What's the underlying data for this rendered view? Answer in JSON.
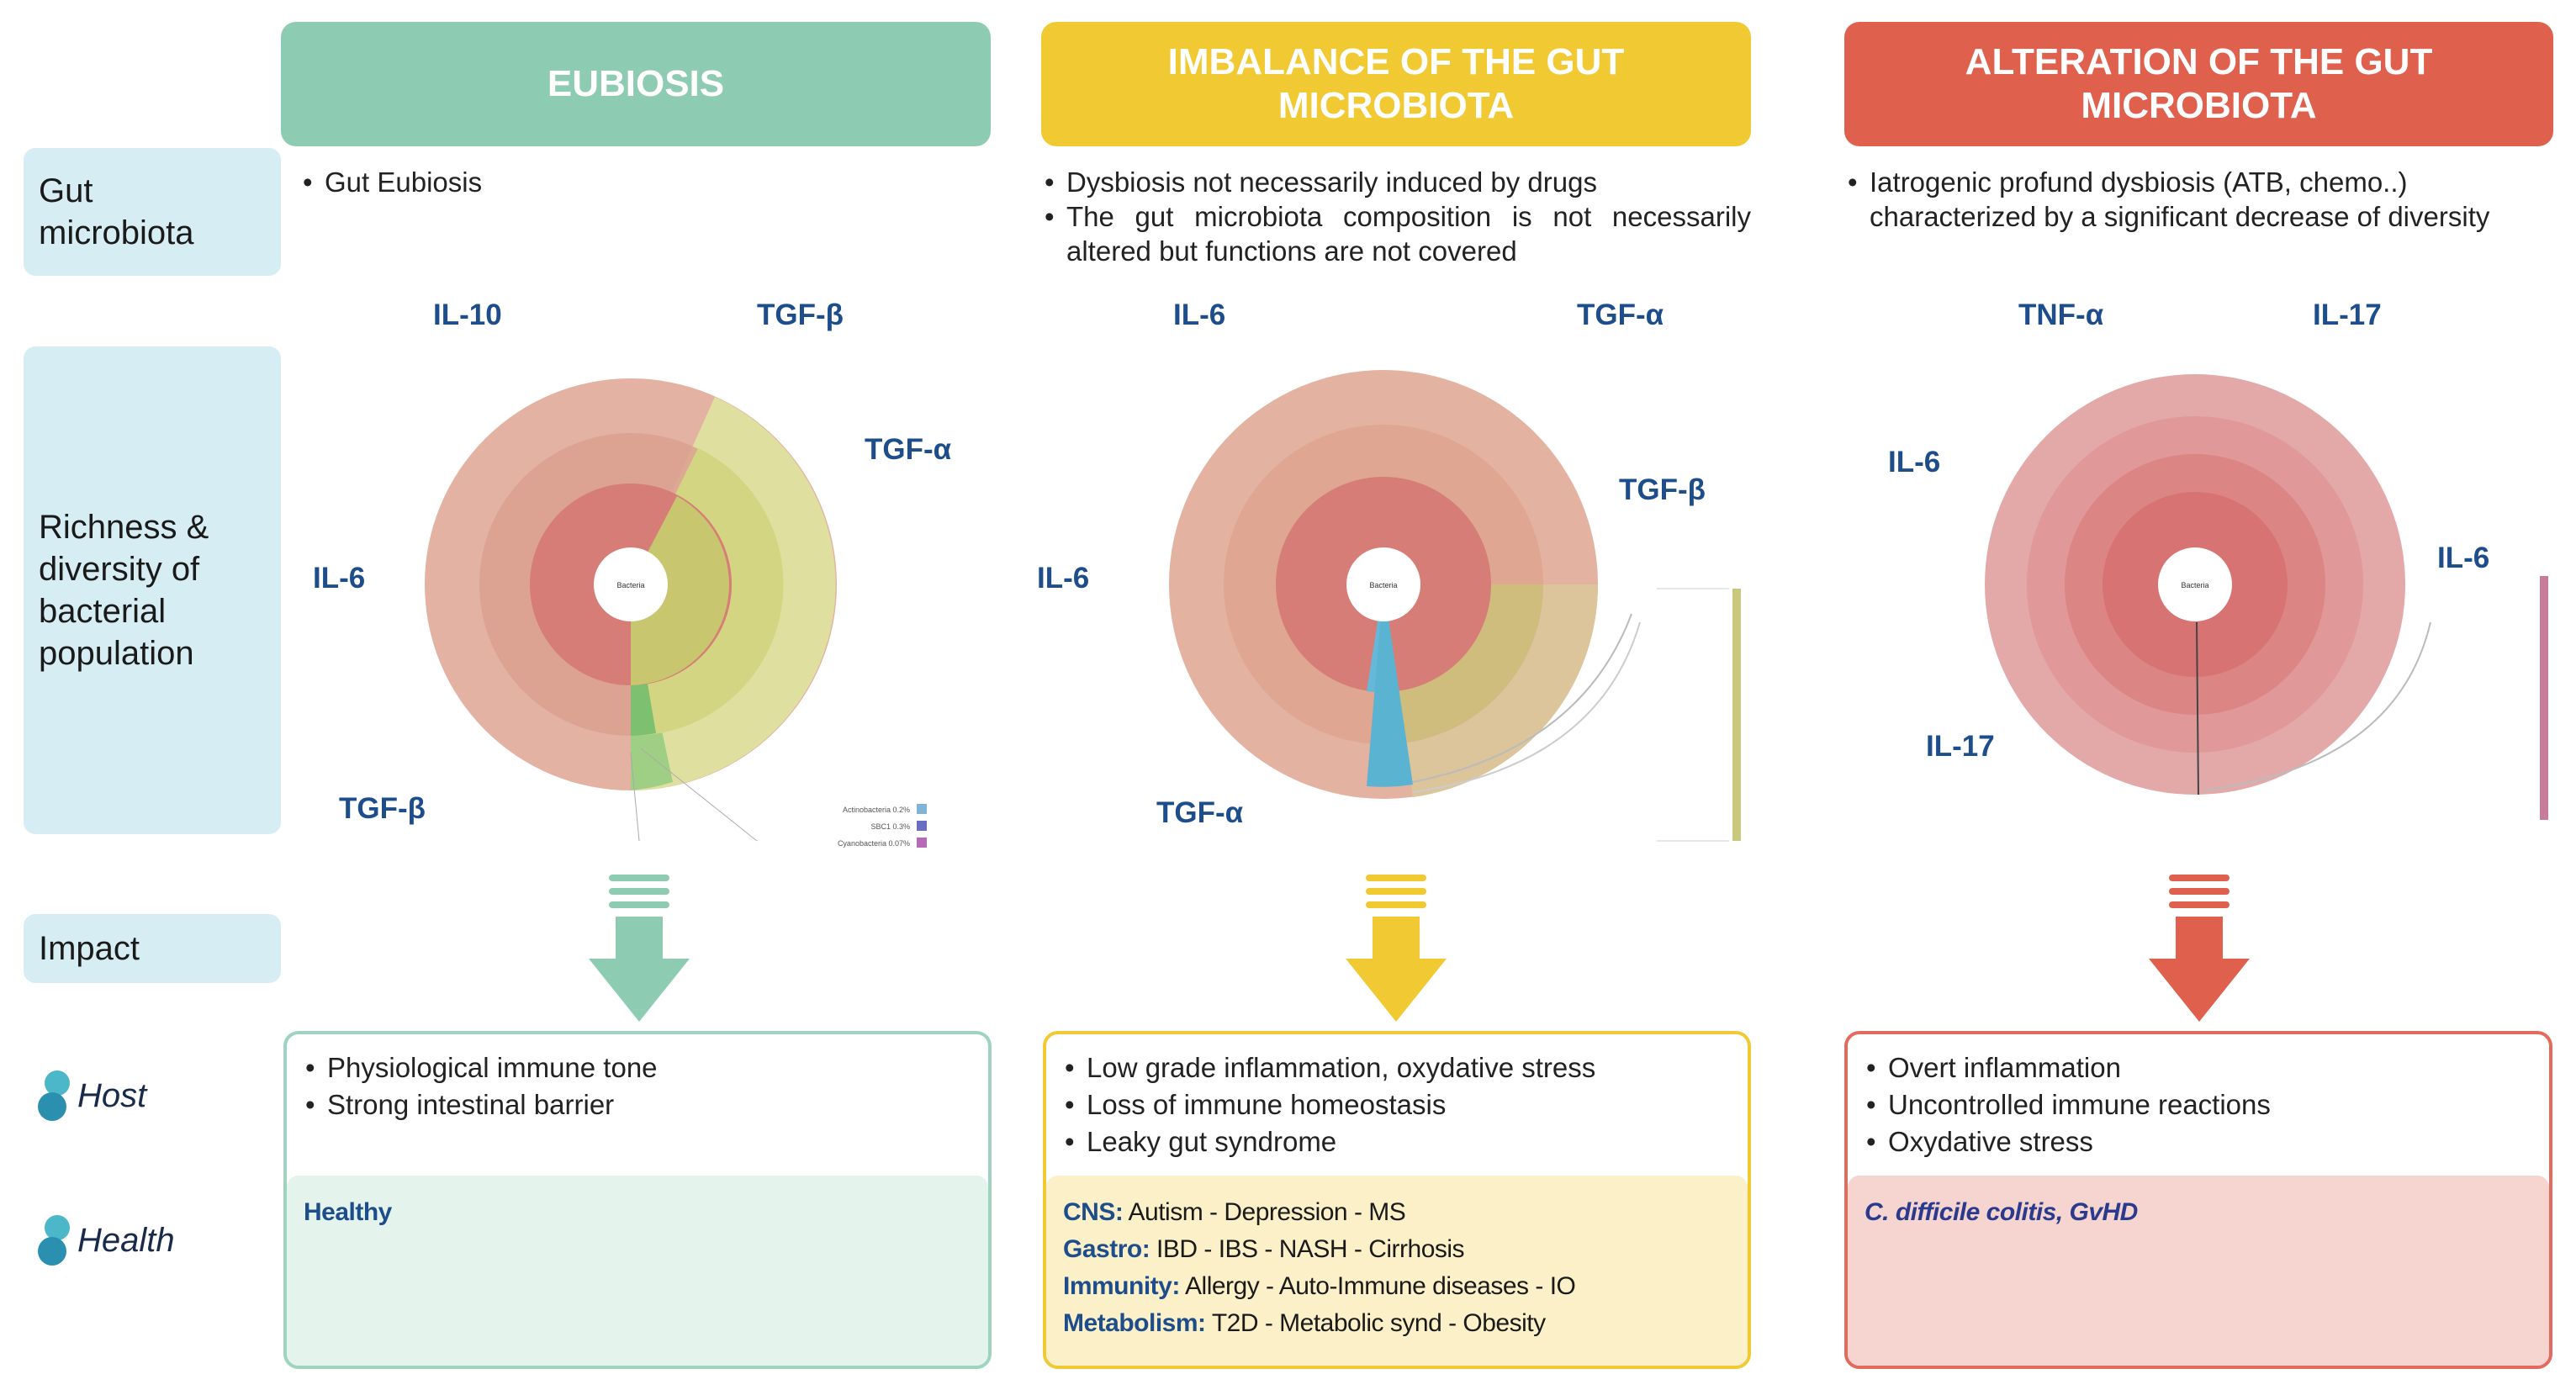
{
  "row_labels": {
    "gut_microbiota": "Gut microbiota",
    "richness": "Richness & diversity of bacterial population",
    "impact": "Impact",
    "host": "Host",
    "health": "Health"
  },
  "columns": [
    {
      "title": "EUBIOSIS",
      "color": "#8ecbb3",
      "microbiota_bullets": [
        "Gut Eubiosis"
      ],
      "cytokines": {
        "c1": "IL-10",
        "c2": "TGF-β",
        "c3": "TGF-α",
        "c4": "IL-6",
        "c5": "TGF-β"
      },
      "host_bullets": [
        "Physiological immune tone",
        "Strong intestinal barrier"
      ],
      "health_lines": [
        {
          "key": "Healthy",
          "value": ""
        }
      ]
    },
    {
      "title": "IMBALANCE OF THE GUT MICROBIOTA",
      "color": "#f1c933",
      "microbiota_bullets": [
        "Dysbiosis not necessarily induced by drugs",
        "The gut microbiota composition is not necessarily altered but functions are not covered"
      ],
      "cytokines": {
        "c1": "IL-6",
        "c2": "TGF-α",
        "c3": "TGF-β",
        "c4": "IL-6",
        "c5": "TGF-α"
      },
      "host_bullets": [
        "Low grade inflammation, oxydative stress",
        "Loss of immune homeostasis",
        "Leaky gut syndrome"
      ],
      "health_lines": [
        {
          "key": "CNS:",
          "value": " Autism - Depression - MS"
        },
        {
          "key": "Gastro:",
          "value": " IBD - IBS - NASH - Cirrhosis"
        },
        {
          "key": "Immunity:",
          "value": " Allergy - Auto-Immune diseases - IO"
        },
        {
          "key": "Metabolism:",
          "value": " T2D - Metabolic synd - Obesity"
        }
      ]
    },
    {
      "title": "ALTERATION OF THE GUT MICROBIOTA",
      "color": "#e0604e",
      "microbiota_bullets": [
        "Iatrogenic profund dysbiosis (ATB, chemo..) characterized by a significant decrease of diversity"
      ],
      "cytokines": {
        "c1": "TNF-α",
        "c2": "IL-17",
        "c3": "IL-6",
        "c4": "IL-6",
        "c5": "IL-17"
      },
      "host_bullets": [
        "Overt inflammation",
        "Uncontrolled immune reactions",
        "Oxydative stress"
      ],
      "health_lines": [
        {
          "key": "C. difficile colitis, GvHD",
          "value": ""
        }
      ]
    }
  ],
  "krona": {
    "center_label": "Bacteria",
    "legend_eubiosis": [
      "Actinobacteria 0.2%",
      "SBC1 0.3%",
      "Cyanobacteria 0.07%"
    ]
  }
}
